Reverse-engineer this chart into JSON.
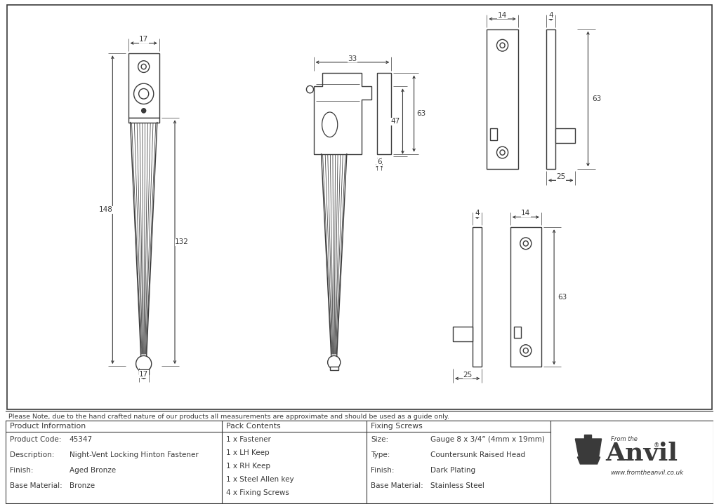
{
  "bg_color": "#ffffff",
  "line_color": "#3a3a3a",
  "note_text": "Please Note, due to the hand crafted nature of our products all measurements are approximate and should be used as a guide only.",
  "product_info": {
    "header": "Product Information",
    "rows": [
      [
        "Product Code:",
        "45347"
      ],
      [
        "Description:",
        "Night-Vent Locking Hinton Fastener"
      ],
      [
        "Finish:",
        "Aged Bronze"
      ],
      [
        "Base Material:",
        "Bronze"
      ]
    ]
  },
  "pack_contents": {
    "header": "Pack Contents",
    "items": [
      "1 x Fastener",
      "1 x LH Keep",
      "1 x RH Keep",
      "1 x Steel Allen key",
      "4 x Fixing Screws"
    ]
  },
  "fixing_screws": {
    "header": "Fixing Screws",
    "rows": [
      [
        "Size:",
        "Gauge 8 x 3/4” (4mm x 19mm)"
      ],
      [
        "Type:",
        "Countersunk Raised Head"
      ],
      [
        "Finish:",
        "Dark Plating"
      ],
      [
        "Base Material:",
        "Stainless Steel"
      ]
    ]
  }
}
